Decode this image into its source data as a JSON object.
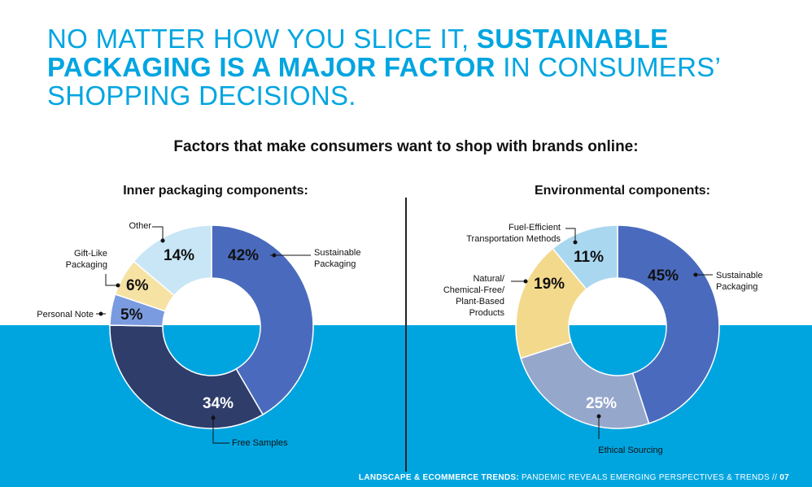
{
  "headline": {
    "part1": "NO MATTER HOW YOU SLICE IT, ",
    "part2_bold": "SUSTAINABLE PACKAGING IS A MAJOR FACTOR",
    "part3": " IN CONSUMERS’ SHOPPING DECISIONS."
  },
  "subtitle": "Factors that make consumers want to shop with brands online:",
  "footer": {
    "bold": "LANDSCAPE & ECOMMERCE TRENDS:",
    "text": " PANDEMIC REVEALS EMERGING PERSPECTIVES & TRENDS // ",
    "page": "07"
  },
  "colors": {
    "accent": "#00a5e0",
    "band": "#00a5e0"
  },
  "chart_data": [
    {
      "type": "pie",
      "title": "Inner packaging components:",
      "slices": [
        {
          "label": "Sustainable Packaging",
          "value": 42,
          "value_label": "42%",
          "color": "#4a6bbd"
        },
        {
          "label": "Free Samples",
          "value": 34,
          "value_label": "34%",
          "color": "#2f3d6b"
        },
        {
          "label": "Personal Note",
          "value": 5,
          "value_label": "5%",
          "color": "#7b9be0"
        },
        {
          "label": "Gift-Like Packaging",
          "value": 6,
          "value_label": "6%",
          "color": "#f6e2a3"
        },
        {
          "label": "Other",
          "value": 14,
          "value_label": "14%",
          "color": "#c8e6f6"
        }
      ]
    },
    {
      "type": "pie",
      "title": "Environmental components:",
      "slices": [
        {
          "label": "Sustainable Packaging",
          "value": 45,
          "value_label": "45%",
          "color": "#4a6bbd"
        },
        {
          "label": "Ethical Sourcing",
          "value": 25,
          "value_label": "25%",
          "color": "#96a7cc"
        },
        {
          "label": "Natural/ Chemical-Free/ Plant-Based Products",
          "value": 19,
          "value_label": "19%",
          "color": "#f3d98c"
        },
        {
          "label": "Fuel-Efficient Transportation Methods",
          "value": 11,
          "value_label": "11%",
          "color": "#a9d7ef"
        }
      ]
    }
  ]
}
